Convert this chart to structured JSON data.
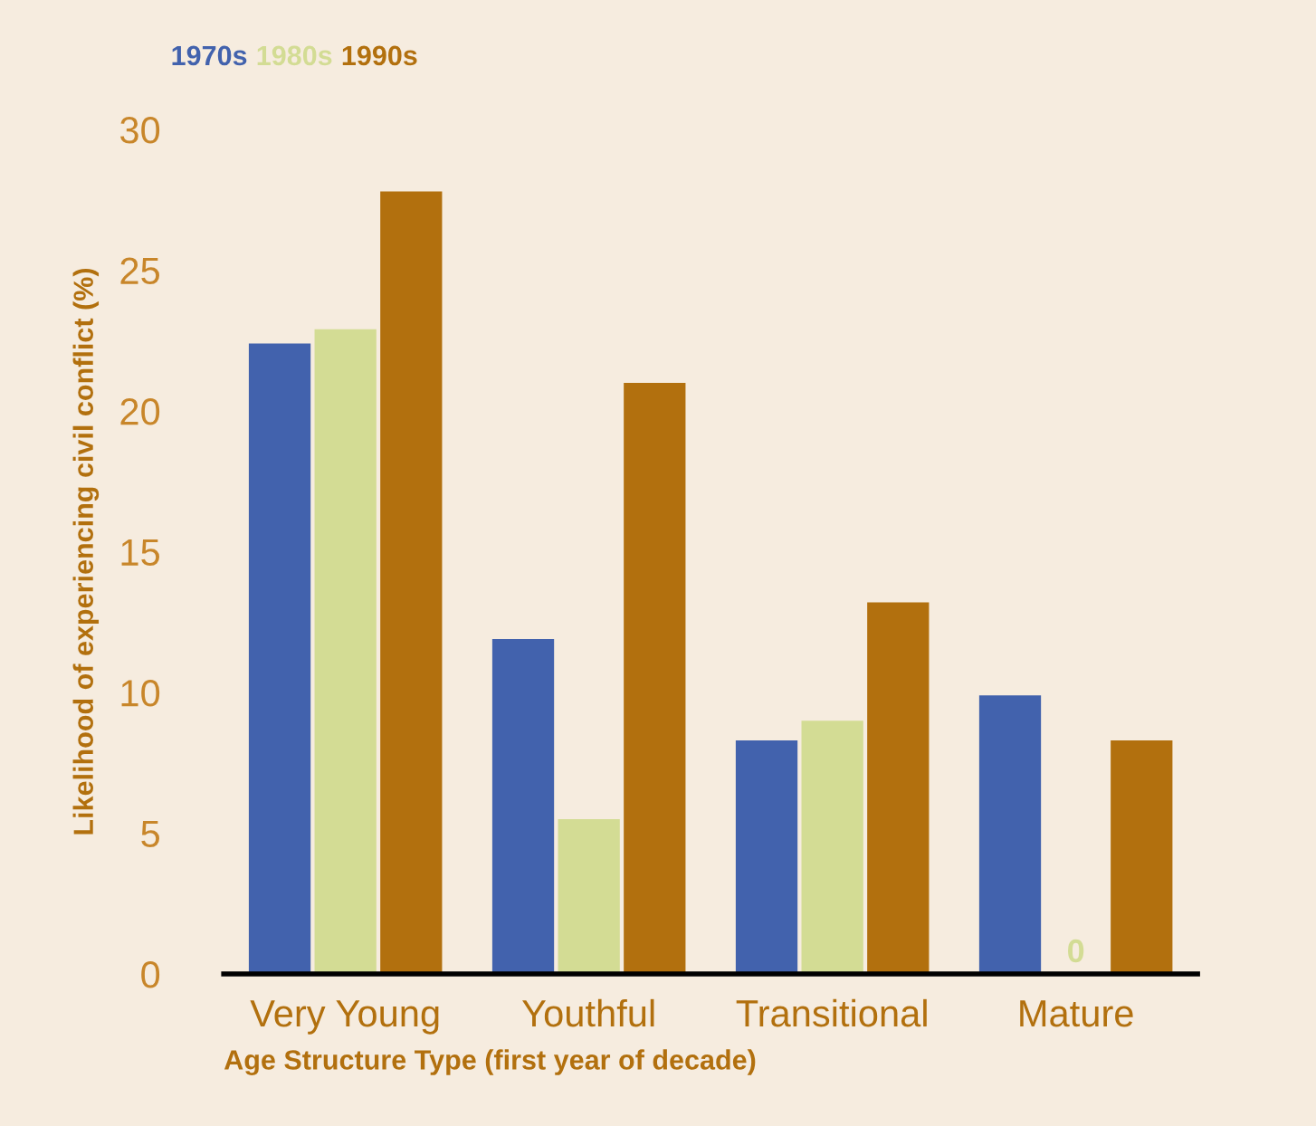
{
  "chart_data": {
    "type": "bar",
    "xlabel": "Age Structure Type (first year of decade)",
    "ylabel": "Likelihood of experiencing civil conflict (%)",
    "categories": [
      "Very Young",
      "Youthful",
      "Transitional",
      "Mature"
    ],
    "series": [
      {
        "name": "1970s",
        "color": "#4262ad",
        "values": [
          22.4,
          11.9,
          8.3,
          9.9
        ]
      },
      {
        "name": "1980s",
        "color": "#d3dc94",
        "values": [
          22.9,
          5.5,
          9.0,
          0
        ],
        "value_labels": [
          null,
          null,
          null,
          "0"
        ]
      },
      {
        "name": "1990s",
        "color": "#b2700e",
        "values": [
          27.8,
          21.0,
          13.2,
          8.3
        ]
      }
    ],
    "ylim": [
      0,
      30
    ],
    "yticks": [
      0,
      5,
      10,
      15,
      20,
      25,
      30
    ],
    "legend": "top left",
    "grid": false
  }
}
